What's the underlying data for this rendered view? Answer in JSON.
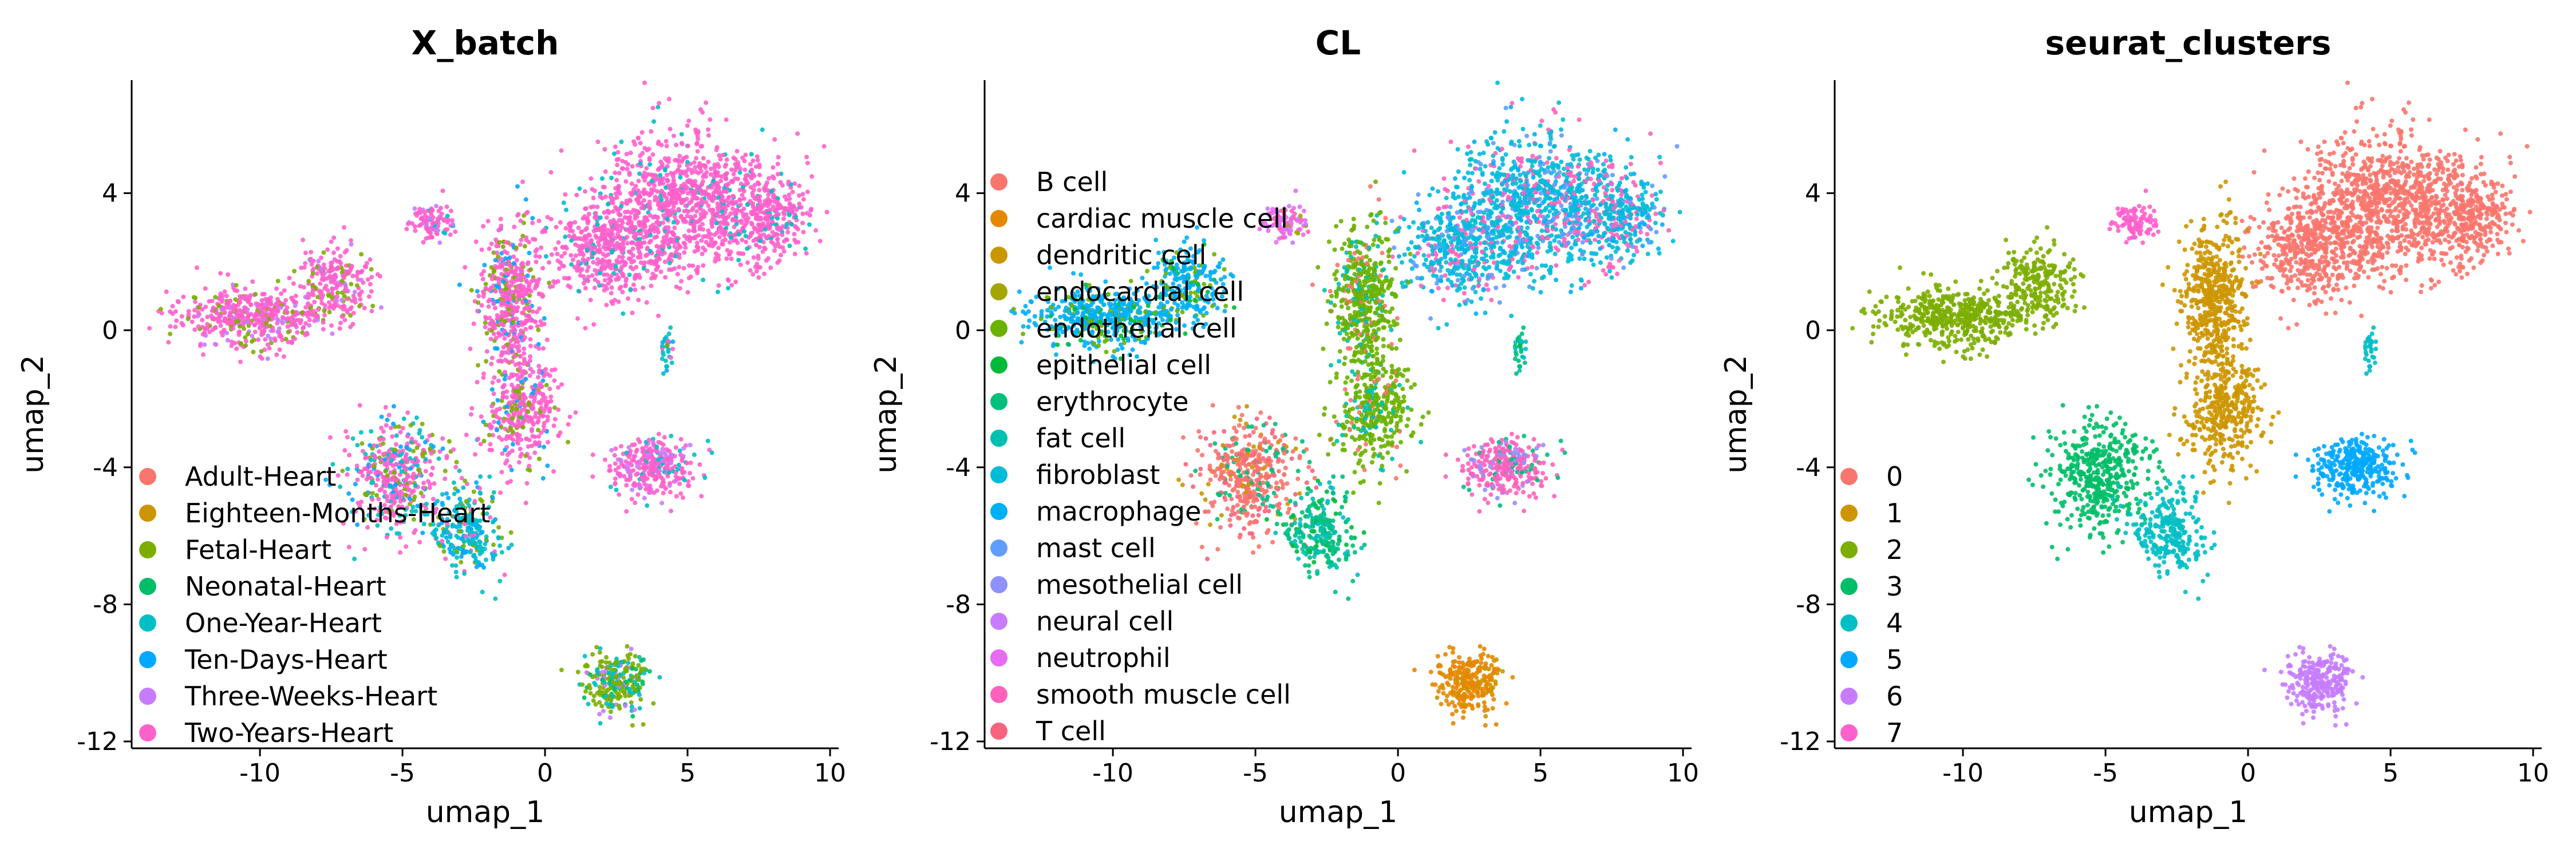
{
  "chart_data": [
    {
      "type": "scatter",
      "title": "X_batch",
      "xlabel": "umap_1",
      "ylabel": "umap_2",
      "xlim": [
        -14.5,
        10.3
      ],
      "ylim": [
        -12.2,
        7.3
      ],
      "xticks": [
        -10,
        -5,
        0,
        5,
        10
      ],
      "yticks": [
        -12,
        -8,
        -4,
        0,
        4
      ],
      "xtick_labels": [
        "-10",
        "-5",
        "0",
        "5",
        "10"
      ],
      "ytick_labels": [
        "-12",
        "-8",
        "-4",
        "0",
        "4"
      ],
      "grid": false,
      "legend_position": "bottom-left inside plot",
      "series": [
        {
          "name": "Adult-Heart",
          "color": "#F8766D"
        },
        {
          "name": "Eighteen-Months-Heart",
          "color": "#CD9600"
        },
        {
          "name": "Fetal-Heart",
          "color": "#7CAE00"
        },
        {
          "name": "Neonatal-Heart",
          "color": "#00BE67"
        },
        {
          "name": "One-Year-Heart",
          "color": "#00BFC4"
        },
        {
          "name": "Ten-Days-Heart",
          "color": "#00A9FF"
        },
        {
          "name": "Three-Weeks-Heart",
          "color": "#C77CFF"
        },
        {
          "name": "Two-Years-Heart",
          "color": "#FF61CC"
        }
      ]
    },
    {
      "type": "scatter",
      "title": "CL",
      "xlabel": "umap_1",
      "ylabel": "umap_2",
      "xlim": [
        -14.5,
        10.3
      ],
      "ylim": [
        -12.2,
        7.3
      ],
      "xticks": [
        -10,
        -5,
        0,
        5,
        10
      ],
      "yticks": [
        -12,
        -8,
        -4,
        0,
        4
      ],
      "xtick_labels": [
        "-10",
        "-5",
        "0",
        "5",
        "10"
      ],
      "ytick_labels": [
        "-12",
        "-8",
        "-4",
        "0",
        "4"
      ],
      "grid": false,
      "legend_position": "left inside plot",
      "series": [
        {
          "name": "B cell",
          "color": "#F8766D"
        },
        {
          "name": "cardiac muscle cell",
          "color": "#E58700"
        },
        {
          "name": "dendritic cell",
          "color": "#C99800"
        },
        {
          "name": "endocardial cell",
          "color": "#A3A500"
        },
        {
          "name": "endothelial cell",
          "color": "#6BB100"
        },
        {
          "name": "epithelial cell",
          "color": "#00BA38"
        },
        {
          "name": "erythrocyte",
          "color": "#00BF7D"
        },
        {
          "name": "fat cell",
          "color": "#00C0AF"
        },
        {
          "name": "fibroblast",
          "color": "#00BCD8"
        },
        {
          "name": "macrophage",
          "color": "#00B0F6"
        },
        {
          "name": "mast cell",
          "color": "#619CFF"
        },
        {
          "name": "mesothelial cell",
          "color": "#8F91FF"
        },
        {
          "name": "neural cell",
          "color": "#C77CFF"
        },
        {
          "name": "neutrophil",
          "color": "#E76BF3"
        },
        {
          "name": "smooth muscle cell",
          "color": "#FF62BC"
        },
        {
          "name": "T cell",
          "color": "#F8637E"
        }
      ]
    },
    {
      "type": "scatter",
      "title": "seurat_clusters",
      "xlabel": "umap_1",
      "ylabel": "umap_2",
      "xlim": [
        -14.5,
        10.3
      ],
      "ylim": [
        -12.2,
        7.3
      ],
      "xticks": [
        -10,
        -5,
        0,
        5,
        10
      ],
      "yticks": [
        -12,
        -8,
        -4,
        0,
        4
      ],
      "xtick_labels": [
        "-10",
        "-5",
        "0",
        "5",
        "10"
      ],
      "ytick_labels": [
        "-12",
        "-8",
        "-4",
        "0",
        "4"
      ],
      "grid": false,
      "legend_position": "bottom-left inside plot",
      "series": [
        {
          "name": "0",
          "color": "#F8766D"
        },
        {
          "name": "1",
          "color": "#CD9600"
        },
        {
          "name": "2",
          "color": "#7CAE00"
        },
        {
          "name": "3",
          "color": "#00BE67"
        },
        {
          "name": "4",
          "color": "#00BFC4"
        },
        {
          "name": "5",
          "color": "#00A9FF"
        },
        {
          "name": "6",
          "color": "#C77CFF"
        },
        {
          "name": "7",
          "color": "#FF61CC"
        }
      ]
    }
  ]
}
